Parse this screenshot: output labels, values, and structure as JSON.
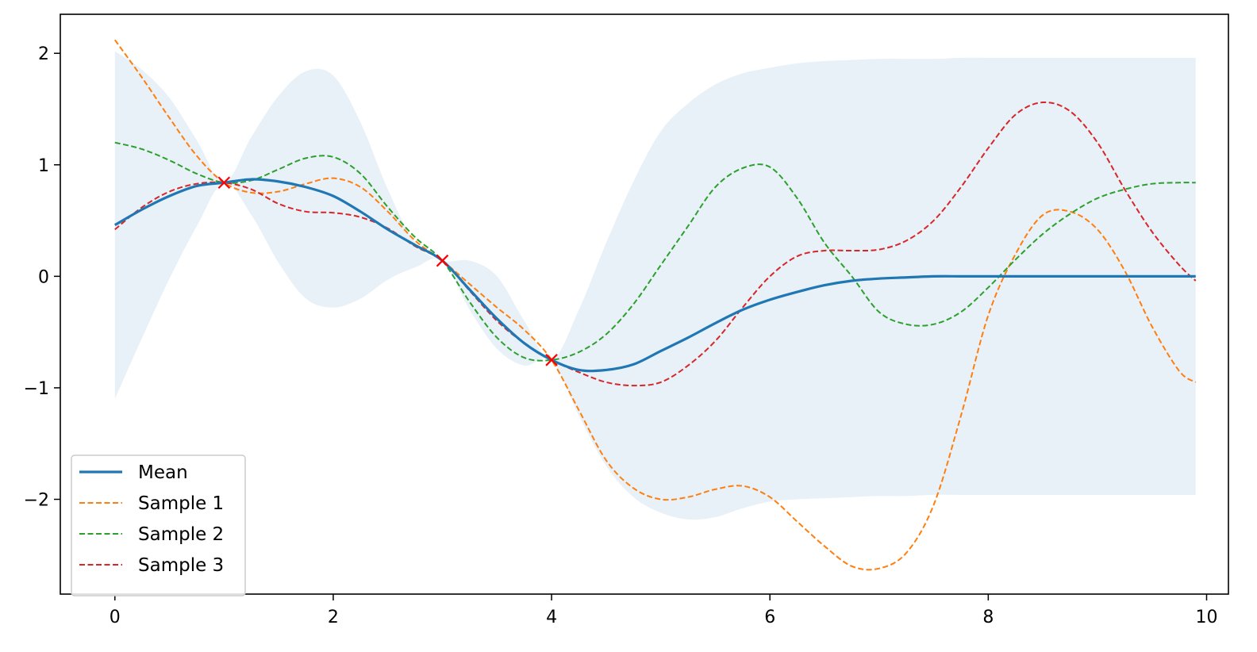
{
  "chart_data": {
    "type": "line",
    "title": "",
    "xlabel": "",
    "ylabel": "",
    "xlim": [
      -0.5,
      10.2
    ],
    "ylim": [
      -2.85,
      2.35
    ],
    "xticks": [
      0,
      2,
      4,
      6,
      8,
      10
    ],
    "xtick_labels": [
      "0",
      "2",
      "4",
      "6",
      "8",
      "10"
    ],
    "yticks": [
      -2,
      -1,
      0,
      1,
      2
    ],
    "ytick_labels": [
      "−2",
      "−1",
      "0",
      "1",
      "2"
    ],
    "grid": false,
    "legend_position": "lower-left",
    "x": [
      0,
      0.25,
      0.5,
      0.75,
      1,
      1.25,
      1.5,
      1.75,
      2,
      2.25,
      2.5,
      2.75,
      3,
      3.25,
      3.5,
      3.75,
      4,
      4.25,
      4.5,
      4.75,
      5,
      5.25,
      5.5,
      5.75,
      6,
      6.25,
      6.5,
      6.75,
      7,
      7.25,
      7.5,
      7.75,
      8,
      8.25,
      8.5,
      8.75,
      9,
      9.25,
      9.5,
      9.75,
      9.9
    ],
    "confidence_band": {
      "color": "#e8f0f8",
      "upper": [
        2.02,
        1.85,
        1.6,
        1.22,
        0.84,
        1.25,
        1.62,
        1.84,
        1.8,
        1.38,
        0.78,
        0.3,
        0.14,
        0.14,
        0.0,
        -0.4,
        -0.75,
        -0.3,
        0.3,
        0.85,
        1.3,
        1.55,
        1.72,
        1.82,
        1.87,
        1.91,
        1.93,
        1.94,
        1.95,
        1.95,
        1.95,
        1.96,
        1.96,
        1.96,
        1.96,
        1.96,
        1.96,
        1.96,
        1.96,
        1.96,
        1.96
      ],
      "lower": [
        -1.1,
        -0.55,
        -0.02,
        0.45,
        0.84,
        0.55,
        0.12,
        -0.2,
        -0.28,
        -0.2,
        -0.03,
        0.08,
        0.14,
        -0.3,
        -0.65,
        -0.8,
        -0.75,
        -1.25,
        -1.7,
        -1.98,
        -2.12,
        -2.18,
        -2.16,
        -2.08,
        -2.02,
        -2.0,
        -1.99,
        -1.98,
        -1.97,
        -1.97,
        -1.96,
        -1.96,
        -1.96,
        -1.96,
        -1.96,
        -1.96,
        -1.96,
        -1.96,
        -1.96,
        -1.96,
        -1.96
      ]
    },
    "series": [
      {
        "name": "Mean",
        "color": "#1f77b4",
        "style": "solid",
        "values": [
          0.46,
          0.6,
          0.72,
          0.81,
          0.84,
          0.87,
          0.85,
          0.8,
          0.72,
          0.58,
          0.42,
          0.28,
          0.14,
          -0.12,
          -0.38,
          -0.6,
          -0.75,
          -0.84,
          -0.84,
          -0.79,
          -0.67,
          -0.55,
          -0.42,
          -0.3,
          -0.21,
          -0.14,
          -0.08,
          -0.04,
          -0.02,
          -0.01,
          0.0,
          0.0,
          0.0,
          0.0,
          0.0,
          0.0,
          0.0,
          0.0,
          0.0,
          0.0,
          0.0
        ]
      },
      {
        "name": "Sample 1",
        "color": "#ff7f0e",
        "style": "dashed",
        "values": [
          2.12,
          1.78,
          1.42,
          1.08,
          0.84,
          0.75,
          0.76,
          0.83,
          0.88,
          0.8,
          0.58,
          0.32,
          0.14,
          -0.07,
          -0.28,
          -0.48,
          -0.75,
          -1.2,
          -1.65,
          -1.9,
          -2.0,
          -1.98,
          -1.91,
          -1.88,
          -1.98,
          -2.2,
          -2.42,
          -2.6,
          -2.62,
          -2.48,
          -2.05,
          -1.25,
          -0.35,
          0.2,
          0.55,
          0.58,
          0.42,
          0.05,
          -0.45,
          -0.85,
          -0.95
        ]
      },
      {
        "name": "Sample 2",
        "color": "#2ca02c",
        "style": "dashed",
        "values": [
          1.2,
          1.14,
          1.04,
          0.92,
          0.84,
          0.86,
          0.96,
          1.06,
          1.07,
          0.92,
          0.62,
          0.35,
          0.14,
          -0.23,
          -0.55,
          -0.73,
          -0.75,
          -0.68,
          -0.52,
          -0.25,
          0.1,
          0.45,
          0.8,
          0.97,
          0.98,
          0.7,
          0.3,
          0.0,
          -0.32,
          -0.43,
          -0.43,
          -0.32,
          -0.1,
          0.15,
          0.38,
          0.56,
          0.7,
          0.78,
          0.83,
          0.84,
          0.84
        ]
      },
      {
        "name": "Sample 3",
        "color": "#d62728",
        "style": "dashed",
        "values": [
          0.42,
          0.62,
          0.76,
          0.83,
          0.84,
          0.78,
          0.65,
          0.58,
          0.57,
          0.53,
          0.43,
          0.27,
          0.14,
          -0.13,
          -0.4,
          -0.6,
          -0.75,
          -0.86,
          -0.95,
          -0.98,
          -0.95,
          -0.8,
          -0.58,
          -0.28,
          0.0,
          0.18,
          0.23,
          0.23,
          0.24,
          0.32,
          0.5,
          0.8,
          1.15,
          1.45,
          1.56,
          1.48,
          1.2,
          0.78,
          0.4,
          0.1,
          -0.04
        ]
      }
    ],
    "observations": {
      "color": "#ff0000",
      "marker": "x",
      "x": [
        1,
        3,
        4
      ],
      "y": [
        0.84,
        0.14,
        -0.75
      ]
    }
  }
}
